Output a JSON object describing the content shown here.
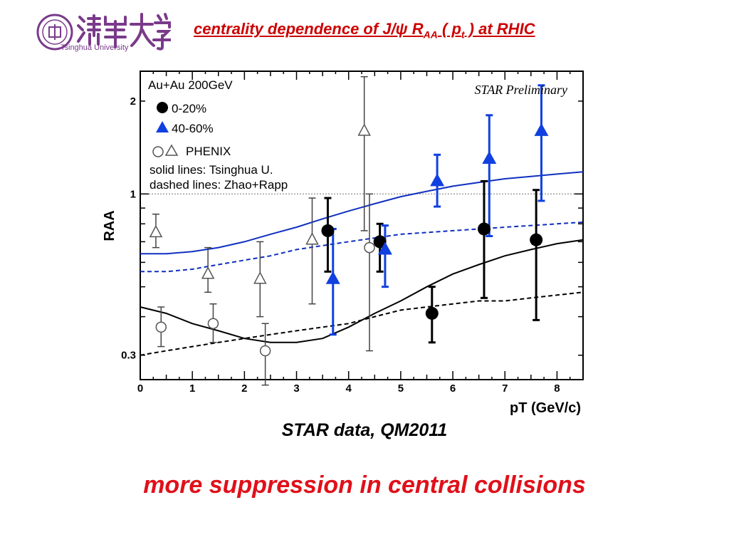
{
  "header": {
    "logo_text": "Tsinghua University",
    "title_main": "centrality dependence of J/ψ R",
    "title_sub": "AA",
    "title_mid": " ( p",
    "title_sub2": "t",
    "title_end": " ) at RHIC"
  },
  "caption": "STAR data, QM2011",
  "conclusion": "more suppression in central collisions",
  "colors": {
    "title": "#cc0000",
    "conclusion": "#e0101a",
    "blue": "#1040e0",
    "logo": "#7a3a8a"
  },
  "chart_data": {
    "type": "scatter",
    "title": "",
    "xlabel": "pT (GeV/c)",
    "ylabel": "RAA",
    "xlim": [
      0,
      8.5
    ],
    "ylim": [
      0.25,
      2.5
    ],
    "yscale": "log",
    "x_ticks": [
      "0",
      "1",
      "2",
      "3",
      "4",
      "5",
      "6",
      "7",
      "8"
    ],
    "y_ticks": [
      "0.3",
      "1",
      "2"
    ],
    "reference_line": 1,
    "annotations": {
      "system": "Au+Au 200GeV",
      "preliminary": "STAR Preliminary",
      "phenix": "PHENIX",
      "solid_note": "solid lines: Tsinghua U.",
      "dashed_note": "dashed lines: Zhao+Rapp"
    },
    "series": [
      {
        "name": "0-20%",
        "marker": "filled-circle",
        "color": "#000000",
        "points": [
          {
            "x": 3.6,
            "y": 0.76,
            "lo": 0.56,
            "hi": 0.97
          },
          {
            "x": 4.6,
            "y": 0.7,
            "lo": 0.56,
            "hi": 0.8
          },
          {
            "x": 5.6,
            "y": 0.41,
            "lo": 0.33,
            "hi": 0.5
          },
          {
            "x": 6.6,
            "y": 0.77,
            "lo": 0.46,
            "hi": 1.1
          },
          {
            "x": 7.6,
            "y": 0.71,
            "lo": 0.39,
            "hi": 1.03
          }
        ]
      },
      {
        "name": "40-60%",
        "marker": "filled-triangle",
        "color": "#1040e0",
        "points": [
          {
            "x": 3.7,
            "y": 0.53,
            "lo": 0.35,
            "hi": 0.77
          },
          {
            "x": 4.7,
            "y": 0.66,
            "lo": 0.5,
            "hi": 0.79
          },
          {
            "x": 5.7,
            "y": 1.1,
            "lo": 0.91,
            "hi": 1.34
          },
          {
            "x": 6.7,
            "y": 1.3,
            "lo": 0.73,
            "hi": 1.8
          },
          {
            "x": 7.7,
            "y": 1.6,
            "lo": 0.95,
            "hi": 2.25
          }
        ]
      },
      {
        "name": "PHENIX 0-20%",
        "marker": "open-circle",
        "color": "#444444",
        "points": [
          {
            "x": 0.4,
            "y": 0.37,
            "lo": 0.32,
            "hi": 0.43
          },
          {
            "x": 1.4,
            "y": 0.38,
            "lo": 0.33,
            "hi": 0.44
          },
          {
            "x": 2.4,
            "y": 0.31,
            "lo": 0.24,
            "hi": 0.38
          },
          {
            "x": 4.4,
            "y": 0.67,
            "lo": 0.31,
            "hi": 1.0
          }
        ]
      },
      {
        "name": "PHENIX 40-60%",
        "marker": "open-triangle",
        "color": "#444444",
        "points": [
          {
            "x": 0.3,
            "y": 0.75,
            "lo": 0.67,
            "hi": 0.86
          },
          {
            "x": 1.3,
            "y": 0.55,
            "lo": 0.48,
            "hi": 0.67
          },
          {
            "x": 2.3,
            "y": 0.53,
            "lo": 0.4,
            "hi": 0.7
          },
          {
            "x": 3.3,
            "y": 0.71,
            "lo": 0.44,
            "hi": 0.97
          },
          {
            "x": 4.3,
            "y": 1.6,
            "lo": 0.76,
            "hi": 2.4
          }
        ]
      }
    ],
    "curves": [
      {
        "name": "Tsinghua U. 40-60%",
        "style": "solid",
        "color": "#1030c0",
        "x": [
          0,
          0.5,
          1,
          1.5,
          2,
          2.5,
          3,
          3.5,
          4,
          4.5,
          5,
          5.5,
          6,
          6.5,
          7,
          7.5,
          8,
          8.5
        ],
        "y": [
          0.64,
          0.64,
          0.65,
          0.67,
          0.7,
          0.74,
          0.78,
          0.83,
          0.88,
          0.93,
          0.98,
          1.02,
          1.06,
          1.09,
          1.12,
          1.14,
          1.16,
          1.18
        ]
      },
      {
        "name": "Zhao+Rapp 40-60%",
        "style": "dashed",
        "color": "#1030c0",
        "x": [
          0,
          0.5,
          1,
          1.5,
          2,
          2.5,
          3,
          3.5,
          4,
          4.5,
          5,
          5.5,
          6,
          6.5,
          7,
          7.5,
          8,
          8.5
        ],
        "y": [
          0.56,
          0.56,
          0.57,
          0.59,
          0.61,
          0.63,
          0.66,
          0.68,
          0.7,
          0.72,
          0.74,
          0.75,
          0.76,
          0.77,
          0.78,
          0.79,
          0.8,
          0.81
        ]
      },
      {
        "name": "Tsinghua U. 0-20%",
        "style": "solid",
        "color": "#000000",
        "x": [
          0,
          0.5,
          1,
          1.5,
          2,
          2.5,
          3,
          3.5,
          4,
          4.5,
          5,
          5.5,
          6,
          6.5,
          7,
          7.5,
          8,
          8.5
        ],
        "y": [
          0.43,
          0.41,
          0.38,
          0.36,
          0.34,
          0.33,
          0.33,
          0.34,
          0.37,
          0.41,
          0.45,
          0.5,
          0.55,
          0.59,
          0.63,
          0.66,
          0.69,
          0.71
        ]
      },
      {
        "name": "Zhao+Rapp 0-20%",
        "style": "dashed",
        "color": "#000000",
        "x": [
          0,
          0.5,
          1,
          1.5,
          2,
          2.5,
          3,
          3.5,
          4,
          4.5,
          5,
          5.5,
          6,
          6.5,
          7,
          7.5,
          8,
          8.5
        ],
        "y": [
          0.3,
          0.31,
          0.32,
          0.33,
          0.34,
          0.35,
          0.36,
          0.37,
          0.38,
          0.4,
          0.42,
          0.43,
          0.44,
          0.45,
          0.45,
          0.46,
          0.47,
          0.48
        ]
      }
    ]
  }
}
